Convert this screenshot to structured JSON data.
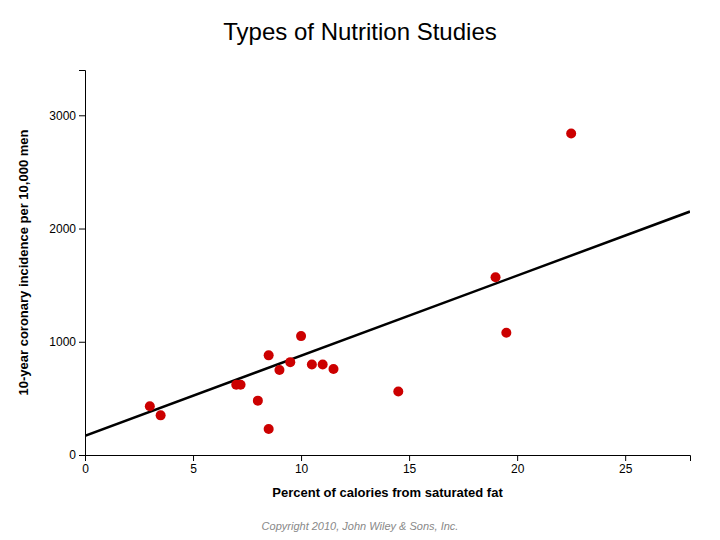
{
  "chart_data": {
    "type": "scatter",
    "title": "Types of Nutrition Studies",
    "xlabel": "Percent of calories from saturated fat",
    "ylabel": "10-year coronary incidence per 10,000 men",
    "annotations": [
      "Copyright 2010, John Wiley & Sons, Inc."
    ],
    "series": [
      {
        "type": "line",
        "color": "#000000",
        "x": [
          0,
          28
        ],
        "values": [
          170,
          2150
        ]
      },
      {
        "type": "scatter",
        "color": "#cc0000",
        "x": [
          3.0,
          3.5,
          7.0,
          7.2,
          8.0,
          8.5,
          8.5,
          9.0,
          9.5,
          10.0,
          10.5,
          11.0,
          11.5,
          14.5,
          19.0,
          19.5,
          22.5
        ],
        "values": [
          430,
          350,
          620,
          620,
          480,
          230,
          880,
          750,
          820,
          1050,
          800,
          800,
          760,
          560,
          1570,
          1080,
          2840
        ]
      }
    ],
    "xlim": [
      0,
      28
    ],
    "ylim": [
      0,
      3400
    ],
    "xticks": [
      0,
      5,
      10,
      15,
      20,
      25
    ],
    "yticks": [
      0,
      1000,
      2000,
      3000
    ]
  }
}
